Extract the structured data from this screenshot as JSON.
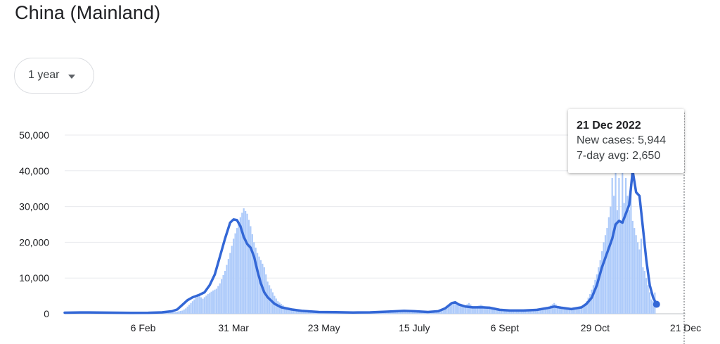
{
  "header": {
    "title": "China (Mainland)"
  },
  "controls": {
    "range_label": "1 year",
    "range_icon": "caret-down-icon"
  },
  "colors": {
    "line": "#3367d6",
    "bars": "#aecbfa",
    "grid": "#e8eaed",
    "axis": "#5f6368"
  },
  "tooltip": {
    "date": "21 Dec 2022",
    "new_cases_label": "New cases:",
    "new_cases_value": "5,944",
    "avg_label": "7-day avg:",
    "avg_value": "2,650"
  },
  "chart_data": {
    "type": "bar",
    "overlay": "line",
    "y_tick_labels": [
      "0",
      "10,000",
      "20,000",
      "30,000",
      "40,000",
      "50,000"
    ],
    "y_ticks": [
      0,
      10000,
      20000,
      30000,
      40000,
      50000
    ],
    "ylim": [
      0,
      50000
    ],
    "x_tick_labels": [
      "6 Feb",
      "31 Mar",
      "23 May",
      "15 July",
      "6 Sept",
      "29 Oct",
      "21 Dec"
    ],
    "x_tick_days": [
      47,
      100,
      153,
      206,
      259,
      312,
      365
    ],
    "xlim": [
      1,
      365
    ],
    "grid": true,
    "series": [
      {
        "kind": "bar",
        "points": [
          [
            1,
            150
          ],
          [
            10,
            200
          ],
          [
            20,
            150
          ],
          [
            30,
            120
          ],
          [
            40,
            180
          ],
          [
            50,
            200
          ],
          [
            60,
            300
          ],
          [
            65,
            400
          ],
          [
            70,
            900
          ],
          [
            72,
            1500
          ],
          [
            75,
            3000
          ],
          [
            78,
            4500
          ],
          [
            80,
            5000
          ],
          [
            82,
            4200
          ],
          [
            85,
            5500
          ],
          [
            88,
            6500
          ],
          [
            90,
            7000
          ],
          [
            92,
            8500
          ],
          [
            95,
            12000
          ],
          [
            98,
            17000
          ],
          [
            100,
            21000
          ],
          [
            102,
            24000
          ],
          [
            104,
            27000
          ],
          [
            106,
            29500
          ],
          [
            108,
            28000
          ],
          [
            110,
            24500
          ],
          [
            112,
            20000
          ],
          [
            114,
            17000
          ],
          [
            116,
            15000
          ],
          [
            118,
            13000
          ],
          [
            120,
            9000
          ],
          [
            122,
            7000
          ],
          [
            124,
            5000
          ],
          [
            126,
            3500
          ],
          [
            130,
            2000
          ],
          [
            135,
            1200
          ],
          [
            140,
            800
          ],
          [
            150,
            400
          ],
          [
            160,
            250
          ],
          [
            170,
            200
          ],
          [
            180,
            300
          ],
          [
            190,
            600
          ],
          [
            200,
            800
          ],
          [
            210,
            700
          ],
          [
            220,
            900
          ],
          [
            224,
            1500
          ],
          [
            227,
            2800
          ],
          [
            230,
            3300
          ],
          [
            232,
            2500
          ],
          [
            235,
            2000
          ],
          [
            238,
            3000
          ],
          [
            241,
            1800
          ],
          [
            245,
            2500
          ],
          [
            250,
            1500
          ],
          [
            255,
            1500
          ],
          [
            260,
            1000
          ],
          [
            270,
            800
          ],
          [
            280,
            1200
          ],
          [
            285,
            2000
          ],
          [
            288,
            3000
          ],
          [
            290,
            2200
          ],
          [
            295,
            1500
          ],
          [
            300,
            1200
          ],
          [
            305,
            1800
          ],
          [
            307,
            3500
          ],
          [
            309,
            5500
          ],
          [
            311,
            8000
          ],
          [
            313,
            11000
          ],
          [
            315,
            15000
          ],
          [
            317,
            20000
          ],
          [
            319,
            24000
          ],
          [
            321,
            30000
          ],
          [
            322,
            38000
          ],
          [
            323,
            33000
          ],
          [
            324,
            40000
          ],
          [
            325,
            29000
          ],
          [
            326,
            38000
          ],
          [
            327,
            26000
          ],
          [
            328,
            40000
          ],
          [
            329,
            31000
          ],
          [
            330,
            38000
          ],
          [
            331,
            33000
          ],
          [
            332,
            29000
          ],
          [
            333,
            36000
          ],
          [
            334,
            26000
          ],
          [
            335,
            24000
          ],
          [
            336,
            22000
          ],
          [
            337,
            20000
          ],
          [
            338,
            18000
          ],
          [
            339,
            21000
          ],
          [
            340,
            13000
          ],
          [
            341,
            12000
          ],
          [
            342,
            10000
          ],
          [
            343,
            8000
          ],
          [
            344,
            6000
          ],
          [
            345,
            4000
          ],
          [
            346,
            3500
          ],
          [
            347,
            5944
          ]
        ]
      },
      {
        "kind": "line",
        "points": [
          [
            1,
            300
          ],
          [
            10,
            380
          ],
          [
            20,
            350
          ],
          [
            30,
            300
          ],
          [
            40,
            260
          ],
          [
            50,
            270
          ],
          [
            58,
            400
          ],
          [
            64,
            700
          ],
          [
            67,
            1200
          ],
          [
            70,
            2500
          ],
          [
            73,
            3800
          ],
          [
            76,
            4600
          ],
          [
            80,
            5300
          ],
          [
            83,
            6000
          ],
          [
            86,
            8000
          ],
          [
            89,
            11000
          ],
          [
            92,
            16000
          ],
          [
            95,
            21000
          ],
          [
            98,
            25500
          ],
          [
            100,
            26400
          ],
          [
            102,
            26200
          ],
          [
            104,
            24500
          ],
          [
            106,
            21500
          ],
          [
            108,
            19500
          ],
          [
            110,
            18500
          ],
          [
            112,
            16000
          ],
          [
            114,
            12000
          ],
          [
            116,
            8500
          ],
          [
            118,
            6000
          ],
          [
            120,
            4600
          ],
          [
            124,
            2800
          ],
          [
            128,
            1800
          ],
          [
            134,
            1200
          ],
          [
            140,
            800
          ],
          [
            150,
            500
          ],
          [
            160,
            450
          ],
          [
            170,
            350
          ],
          [
            180,
            400
          ],
          [
            190,
            600
          ],
          [
            200,
            800
          ],
          [
            206,
            700
          ],
          [
            214,
            500
          ],
          [
            220,
            700
          ],
          [
            224,
            1500
          ],
          [
            228,
            3000
          ],
          [
            230,
            3200
          ],
          [
            232,
            2600
          ],
          [
            236,
            2000
          ],
          [
            240,
            1800
          ],
          [
            246,
            1800
          ],
          [
            250,
            1700
          ],
          [
            256,
            1100
          ],
          [
            262,
            900
          ],
          [
            270,
            900
          ],
          [
            278,
            1100
          ],
          [
            284,
            1600
          ],
          [
            288,
            2000
          ],
          [
            292,
            1700
          ],
          [
            298,
            1300
          ],
          [
            304,
            1800
          ],
          [
            307,
            2800
          ],
          [
            310,
            4500
          ],
          [
            313,
            8000
          ],
          [
            316,
            13000
          ],
          [
            319,
            17000
          ],
          [
            322,
            21000
          ],
          [
            324,
            25000
          ],
          [
            326,
            26000
          ],
          [
            328,
            25500
          ],
          [
            330,
            28000
          ],
          [
            332,
            30500
          ],
          [
            334,
            40000
          ],
          [
            336,
            34000
          ],
          [
            338,
            33000
          ],
          [
            340,
            24000
          ],
          [
            342,
            15000
          ],
          [
            344,
            8000
          ],
          [
            346,
            4500
          ],
          [
            348,
            2650
          ]
        ]
      }
    ],
    "selected_point": {
      "x": 348,
      "y": 2650
    }
  }
}
